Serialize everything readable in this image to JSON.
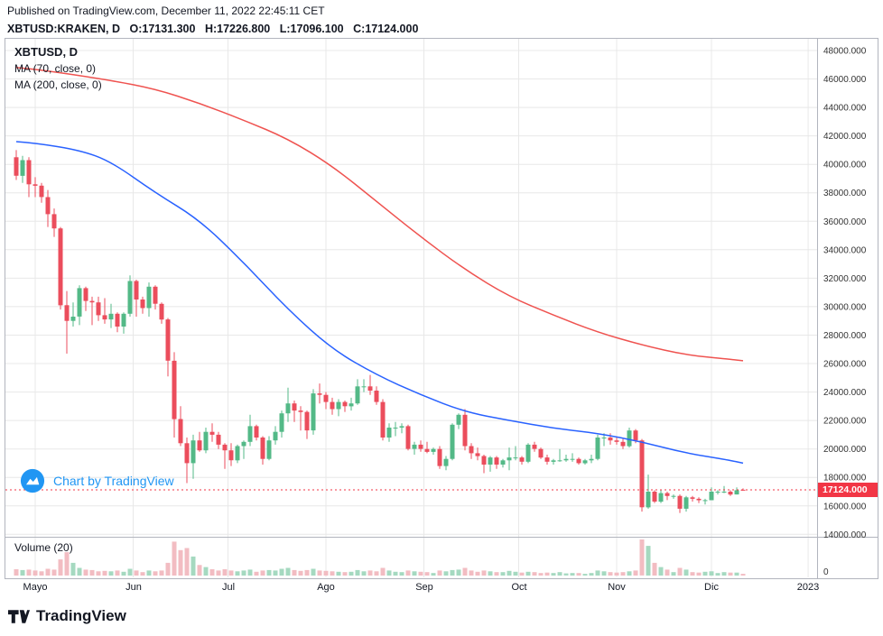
{
  "header": {
    "published_line": "Published on TradingView.com, December 11, 2022 22:45:11 CET",
    "symbol_title": "XBTUSD:KRAKEN, D",
    "ohlc": {
      "o_label": "O:",
      "o": "17131.300",
      "h_label": "H:",
      "h": "17226.800",
      "l_label": "L:",
      "l": "17096.100",
      "c_label": "C:",
      "c": "17124.000"
    }
  },
  "legend": {
    "title": "XBTUSD, D",
    "ma1": "MA (70, close, 0)",
    "ma2": "MA (200, close, 0)"
  },
  "watermark": {
    "text": "Chart by TradingView",
    "color": "#2196f3"
  },
  "volume_pane": {
    "label": "Volume (20)",
    "zero_label": "0"
  },
  "price_scale": {
    "ticks": [
      "48000.000",
      "46000.000",
      "44000.000",
      "42000.000",
      "40000.000",
      "38000.000",
      "36000.000",
      "34000.000",
      "32000.000",
      "30000.000",
      "28000.000",
      "26000.000",
      "24000.000",
      "22000.000",
      "20000.000",
      "18000.000",
      "16000.000",
      "14000.000"
    ],
    "last_price_label": "17124.000",
    "last_price_color": "#f23645"
  },
  "footer": {
    "brand": "TradingView"
  },
  "chart_data": {
    "type": "candlestick",
    "title": "XBTUSD, D",
    "symbol": "XBTUSD:KRAKEN",
    "interval": "D",
    "legend_entries": [
      "MA (70, close, 0)",
      "MA (200, close, 0)"
    ],
    "y_ticks": [
      48000,
      46000,
      44000,
      42000,
      40000,
      38000,
      36000,
      34000,
      32000,
      30000,
      28000,
      26000,
      24000,
      22000,
      20000,
      18000,
      16000,
      14000
    ],
    "y_range": [
      14000,
      48000
    ],
    "grid": true,
    "start": "2022-04-25",
    "step_days": 2,
    "x_ticks": [
      {
        "label": "Mayo",
        "idx": 3
      },
      {
        "label": "Jun",
        "idx": 18.5
      },
      {
        "label": "Jul",
        "idx": 33.5
      },
      {
        "label": "Ago",
        "idx": 49
      },
      {
        "label": "Sep",
        "idx": 64.5
      },
      {
        "label": "Oct",
        "idx": 79.5
      },
      {
        "label": "Nov",
        "idx": 95
      },
      {
        "label": "Dic",
        "idx": 110
      },
      {
        "label": "2023",
        "idx": 125.3
      }
    ],
    "volume_scale": "relative-0-100",
    "candles": [
      [
        40500,
        41000,
        38900,
        39200,
        15
      ],
      [
        39200,
        40600,
        38700,
        40300,
        13
      ],
      [
        40300,
        40500,
        37700,
        38600,
        14
      ],
      [
        38600,
        39100,
        37700,
        38500,
        12
      ],
      [
        38500,
        38700,
        37300,
        37700,
        10
      ],
      [
        37700,
        38200,
        35600,
        36500,
        16
      ],
      [
        36500,
        36900,
        34900,
        35500,
        14
      ],
      [
        35500,
        35600,
        29800,
        30100,
        38
      ],
      [
        30100,
        31100,
        26700,
        29000,
        55
      ],
      [
        29000,
        30300,
        28600,
        29300,
        30
      ],
      [
        29300,
        31500,
        28700,
        31300,
        18
      ],
      [
        31300,
        31400,
        29700,
        30400,
        14
      ],
      [
        30400,
        30700,
        28700,
        30300,
        13
      ],
      [
        30300,
        30700,
        29000,
        29400,
        10
      ],
      [
        29400,
        30600,
        28800,
        29100,
        11
      ],
      [
        29100,
        30200,
        28500,
        29500,
        10
      ],
      [
        29500,
        29600,
        28200,
        28600,
        12
      ],
      [
        28600,
        29600,
        28100,
        29500,
        9
      ],
      [
        29500,
        32200,
        29300,
        31800,
        16
      ],
      [
        31800,
        31900,
        29300,
        30500,
        12
      ],
      [
        30500,
        30700,
        29500,
        29900,
        8
      ],
      [
        29900,
        31700,
        29300,
        31400,
        12
      ],
      [
        31400,
        31500,
        29800,
        30200,
        10
      ],
      [
        30200,
        30300,
        28800,
        29100,
        12
      ],
      [
        29100,
        29200,
        25100,
        26200,
        30
      ],
      [
        26200,
        26800,
        20800,
        22100,
        80
      ],
      [
        22100,
        23000,
        20200,
        20400,
        60
      ],
      [
        20400,
        20800,
        17600,
        19000,
        65
      ],
      [
        19000,
        21000,
        17900,
        20600,
        45
      ],
      [
        20600,
        21200,
        19800,
        19900,
        25
      ],
      [
        19900,
        21500,
        19700,
        21200,
        20
      ],
      [
        21200,
        21800,
        20500,
        21000,
        15
      ],
      [
        21000,
        21200,
        20000,
        20300,
        12
      ],
      [
        20300,
        20400,
        18600,
        19900,
        15
      ],
      [
        19900,
        20400,
        18800,
        19200,
        12
      ],
      [
        19200,
        20300,
        19000,
        20200,
        10
      ],
      [
        20200,
        20600,
        19300,
        20500,
        12
      ],
      [
        20500,
        22400,
        20200,
        21600,
        14
      ],
      [
        21600,
        21700,
        20600,
        20800,
        9
      ],
      [
        20800,
        20900,
        18900,
        19300,
        12
      ],
      [
        19300,
        20900,
        19200,
        20600,
        13
      ],
      [
        20600,
        21600,
        20300,
        21200,
        12
      ],
      [
        21200,
        22700,
        20800,
        22500,
        16
      ],
      [
        22500,
        24300,
        21900,
        23200,
        18
      ],
      [
        23200,
        23400,
        21900,
        22700,
        13
      ],
      [
        22700,
        23000,
        21300,
        22600,
        11
      ],
      [
        22600,
        22700,
        20700,
        21300,
        13
      ],
      [
        21300,
        24200,
        21000,
        23900,
        16
      ],
      [
        23900,
        24600,
        23200,
        23800,
        12
      ],
      [
        23800,
        24000,
        22800,
        23300,
        11
      ],
      [
        23300,
        23600,
        22400,
        22800,
        10
      ],
      [
        22800,
        23500,
        22300,
        23300,
        9
      ],
      [
        23300,
        23400,
        22600,
        23000,
        8
      ],
      [
        23000,
        23600,
        22700,
        23200,
        9
      ],
      [
        23200,
        24900,
        23100,
        24400,
        13
      ],
      [
        24400,
        24900,
        24000,
        24400,
        10
      ],
      [
        24400,
        25200,
        23800,
        24100,
        12
      ],
      [
        24100,
        24400,
        23100,
        23300,
        10
      ],
      [
        23300,
        23500,
        20600,
        20800,
        18
      ],
      [
        20800,
        21800,
        20500,
        21500,
        12
      ],
      [
        21500,
        21900,
        20900,
        21500,
        9
      ],
      [
        21500,
        21800,
        21100,
        21600,
        8
      ],
      [
        21600,
        21700,
        19900,
        20000,
        12
      ],
      [
        20000,
        20500,
        19600,
        20300,
        10
      ],
      [
        20300,
        20600,
        19800,
        20000,
        9
      ],
      [
        20000,
        20500,
        19700,
        19800,
        8
      ],
      [
        19800,
        20100,
        19600,
        20000,
        6
      ],
      [
        20000,
        20200,
        18600,
        18800,
        12
      ],
      [
        18800,
        19500,
        18500,
        19300,
        10
      ],
      [
        19300,
        21800,
        19200,
        21700,
        13
      ],
      [
        21700,
        22500,
        21400,
        22400,
        14
      ],
      [
        22400,
        22800,
        19900,
        20200,
        18
      ],
      [
        20200,
        20400,
        19300,
        19700,
        12
      ],
      [
        19700,
        20100,
        19200,
        19500,
        9
      ],
      [
        19500,
        19600,
        18300,
        18900,
        12
      ],
      [
        18900,
        19500,
        18400,
        19400,
        10
      ],
      [
        19400,
        19500,
        18600,
        18900,
        8
      ],
      [
        18900,
        19300,
        18700,
        19200,
        8
      ],
      [
        19200,
        20100,
        18500,
        19400,
        11
      ],
      [
        19400,
        20200,
        19200,
        19400,
        9
      ],
      [
        19400,
        19500,
        18900,
        19100,
        7
      ],
      [
        19100,
        20400,
        19000,
        20300,
        9
      ],
      [
        20300,
        20500,
        19800,
        20000,
        8
      ],
      [
        20000,
        20100,
        19300,
        19400,
        6
      ],
      [
        19400,
        19600,
        18900,
        19100,
        7
      ],
      [
        19100,
        19300,
        18900,
        19200,
        6
      ],
      [
        19200,
        20000,
        19100,
        19200,
        8
      ],
      [
        19200,
        19600,
        19100,
        19300,
        5
      ],
      [
        19300,
        19700,
        19100,
        19300,
        6
      ],
      [
        19300,
        19400,
        18900,
        19000,
        6
      ],
      [
        19000,
        19300,
        18900,
        19200,
        4
      ],
      [
        19200,
        19600,
        19000,
        19300,
        6
      ],
      [
        19300,
        21000,
        19200,
        20800,
        12
      ],
      [
        20800,
        21100,
        20200,
        20800,
        10
      ],
      [
        20800,
        21100,
        20300,
        20600,
        8
      ],
      [
        20600,
        20800,
        20300,
        20500,
        7
      ],
      [
        20500,
        20700,
        20000,
        20200,
        8
      ],
      [
        20200,
        21500,
        20100,
        21300,
        10
      ],
      [
        21300,
        21400,
        20400,
        20600,
        12
      ],
      [
        20600,
        20700,
        15600,
        15900,
        85
      ],
      [
        15900,
        18200,
        15800,
        17000,
        70
      ],
      [
        17000,
        17100,
        16200,
        16300,
        30
      ],
      [
        16300,
        17100,
        16200,
        16900,
        20
      ],
      [
        16900,
        17000,
        16400,
        16700,
        14
      ],
      [
        16700,
        16800,
        16500,
        16700,
        8
      ],
      [
        16700,
        16800,
        15500,
        15800,
        18
      ],
      [
        15800,
        16700,
        15600,
        16600,
        14
      ],
      [
        16600,
        16700,
        16300,
        16500,
        8
      ],
      [
        16500,
        16600,
        16200,
        16400,
        7
      ],
      [
        16400,
        16500,
        16100,
        16400,
        9
      ],
      [
        16400,
        17300,
        16400,
        17000,
        10
      ],
      [
        17000,
        17100,
        16800,
        17000,
        6
      ],
      [
        17000,
        17400,
        16900,
        17000,
        8
      ],
      [
        17000,
        17100,
        16700,
        16800,
        7
      ],
      [
        16800,
        17300,
        16800,
        17100,
        7
      ],
      [
        17131.3,
        17226.8,
        17096.1,
        17124.0,
        4
      ]
    ],
    "last_bar": {
      "o": 17131.3,
      "h": 17226.8,
      "l": 17096.1,
      "c": 17124.0
    },
    "last_price": 17124.0,
    "ma70": {
      "color": "#2962ff",
      "anchors": [
        [
          0,
          41600
        ],
        [
          3,
          41500
        ],
        [
          10,
          41000
        ],
        [
          15,
          40200
        ],
        [
          22,
          38000
        ],
        [
          29,
          36100
        ],
        [
          36,
          33100
        ],
        [
          43,
          29800
        ],
        [
          50,
          27000
        ],
        [
          57,
          25200
        ],
        [
          64,
          23800
        ],
        [
          71,
          22600
        ],
        [
          78,
          22000
        ],
        [
          85,
          21450
        ],
        [
          92,
          21100
        ],
        [
          99,
          20500
        ],
        [
          106,
          19700
        ],
        [
          113,
          19200
        ],
        [
          115,
          19000
        ]
      ]
    },
    "ma200": {
      "color": "#ef5350",
      "anchors": [
        [
          0,
          46800
        ],
        [
          3,
          46700
        ],
        [
          15,
          45900
        ],
        [
          22,
          45300
        ],
        [
          29,
          44300
        ],
        [
          36,
          43100
        ],
        [
          43,
          41800
        ],
        [
          50,
          39900
        ],
        [
          57,
          37400
        ],
        [
          64,
          34900
        ],
        [
          71,
          32600
        ],
        [
          78,
          30700
        ],
        [
          85,
          29400
        ],
        [
          92,
          28200
        ],
        [
          99,
          27300
        ],
        [
          106,
          26600
        ],
        [
          113,
          26300
        ],
        [
          115,
          26200
        ]
      ]
    },
    "colors": {
      "up": "#53b987",
      "down": "#eb4d5c",
      "vol_up": "#a5d9c0",
      "vol_down": "#f2bcc2",
      "grid": "#e8e8e8",
      "border": "#b2b5be",
      "axis_text": "#333333"
    }
  }
}
